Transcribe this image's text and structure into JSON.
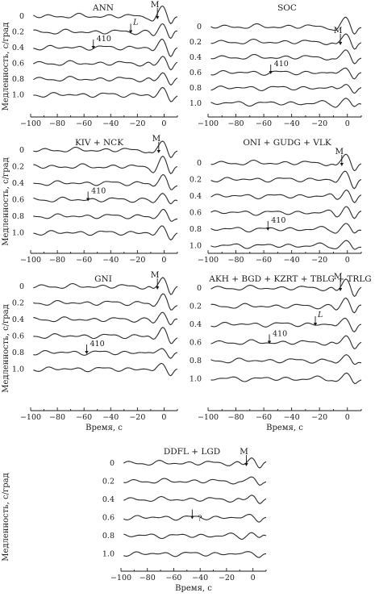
{
  "chart_data": [
    {
      "type": "line",
      "title": "ANN",
      "xlabel": "",
      "ylabel": "Медленность, с/град",
      "xlim": [
        -100,
        10
      ],
      "x_ticks": [
        "−100",
        "−80",
        "−60",
        "−40",
        "−20",
        "0"
      ],
      "slowness_labels": [
        "0",
        "0.2",
        "0.4",
        "0.6",
        "0.8",
        "1.0"
      ],
      "annotations": [
        {
          "text": "M",
          "x": -5,
          "slowness": 0
        },
        {
          "text": "L",
          "x": -25,
          "slowness": 0.2
        },
        {
          "text": "410",
          "x": -53,
          "slowness": 0.4
        }
      ]
    },
    {
      "type": "line",
      "title": "SOC",
      "xlabel": "",
      "ylabel": "",
      "xlim": [
        -100,
        10
      ],
      "x_ticks": [
        "−100",
        "−80",
        "−60",
        "−40",
        "−20",
        "0"
      ],
      "slowness_labels": [
        "0",
        "0.2",
        "0.4",
        "0.6",
        "0.8",
        "1.0"
      ],
      "annotations": [
        {
          "text": "M",
          "x": -5,
          "slowness": 0.2
        },
        {
          "text": "410",
          "x": -55,
          "slowness": 0.6
        }
      ]
    },
    {
      "type": "line",
      "title": "KIV + NCK",
      "xlabel": "",
      "ylabel": "Медленность, с/град",
      "xlim": [
        -100,
        10
      ],
      "x_ticks": [
        "−100",
        "−80",
        "−60",
        "−40",
        "−20",
        "0"
      ],
      "slowness_labels": [
        "0",
        "0.2",
        "0.4",
        "0.6",
        "0.8",
        "1.0"
      ],
      "annotations": [
        {
          "text": "M",
          "x": -4,
          "slowness": 0
        },
        {
          "text": "410",
          "x": -57,
          "slowness": 0.6
        }
      ]
    },
    {
      "type": "line",
      "title": "ONI + GUDG + VLK",
      "xlabel": "",
      "ylabel": "",
      "xlim": [
        -100,
        10
      ],
      "x_ticks": [
        "−100",
        "−80",
        "−60",
        "−40",
        "−20",
        "0"
      ],
      "slowness_labels": [
        "0",
        "0.2",
        "0.4",
        "0.6",
        "0.8",
        "1.0"
      ],
      "annotations": [
        {
          "text": "M",
          "x": -4,
          "slowness": 0
        },
        {
          "text": "410",
          "x": -57,
          "slowness": 0.8
        }
      ]
    },
    {
      "type": "line",
      "title": "GNI",
      "xlabel": "Время, с",
      "ylabel": "Медленность, с/град",
      "xlim": [
        -100,
        10
      ],
      "x_ticks": [
        "−100",
        "−80",
        "−60",
        "−40",
        "−20",
        "0"
      ],
      "slowness_labels": [
        "0",
        "0.2",
        "0.4",
        "0.6",
        "0.8",
        "1.0"
      ],
      "annotations": [
        {
          "text": "M",
          "x": -5,
          "slowness": 0
        },
        {
          "text": "410",
          "x": -58,
          "slowness": 0.8
        }
      ]
    },
    {
      "type": "line",
      "title": "AKH + BGD + KZRT + TBLG + TRLG",
      "xlabel": "Время, с",
      "ylabel": "",
      "xlim": [
        -100,
        10
      ],
      "x_ticks": [
        "−100",
        "−80",
        "−60",
        "−40",
        "−20",
        "0"
      ],
      "slowness_labels": [
        "0",
        "0.2",
        "0.4",
        "0.6",
        "0.8",
        "1.0"
      ],
      "annotations": [
        {
          "text": "M",
          "x": -5,
          "slowness": 0
        },
        {
          "text": "L",
          "x": -23,
          "slowness": 0.4
        },
        {
          "text": "410",
          "x": -56,
          "slowness": 0.6
        }
      ]
    },
    {
      "type": "line",
      "title": "DDFL + LGD",
      "xlabel": "Время, с",
      "ylabel": "Медленность, с/град",
      "xlim": [
        -100,
        10
      ],
      "x_ticks": [
        "−100",
        "−80",
        "−60",
        "−40",
        "−20",
        "0"
      ],
      "slowness_labels": [
        "0",
        "0.2",
        "0.4",
        "0.6",
        "0.8",
        "1.0"
      ],
      "annotations": [
        {
          "text": "M",
          "x": -5,
          "slowness": 0
        },
        {
          "text": "?",
          "x": -46,
          "slowness": 0.6
        }
      ]
    }
  ]
}
